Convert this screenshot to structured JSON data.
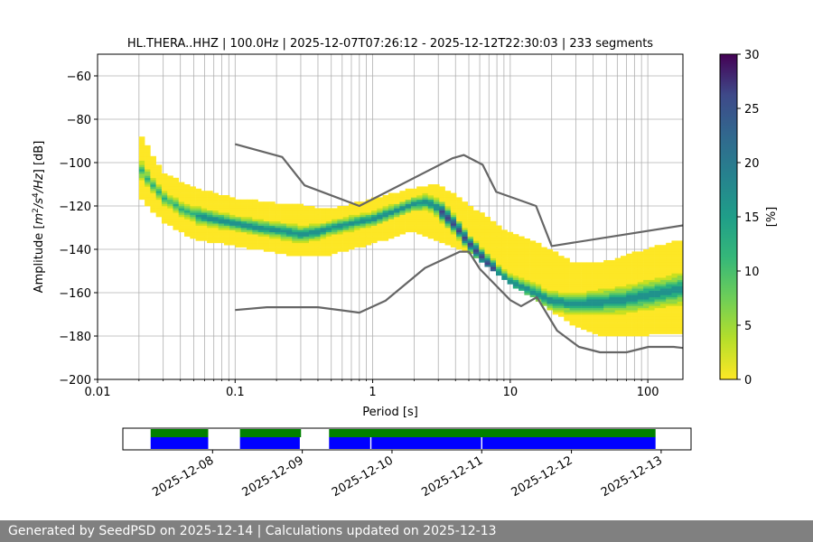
{
  "chart_data": [
    {
      "type": "heatmap",
      "title": "HL.THERA..HHZ | 100.0Hz | 2025-12-07T07:26:12 - 2025-12-12T22:30:03 | 233 segments",
      "xlabel": "Period [s]",
      "ylabel": "Amplitude [$m^2/s^4/Hz$] [dB]",
      "xlabel_parts": {
        "x_tick_labels": [
          "0.01",
          "0.1",
          "1",
          "10",
          "100"
        ]
      },
      "ylabel_parts": {
        "prefix": "Amplitude [",
        "m": "m",
        "two": "2",
        "s": "/s",
        "four": "4",
        "hz": "/Hz",
        "suffix": "] [dB]"
      },
      "x_scale": "log",
      "xlim": [
        0.01,
        180
      ],
      "ylim": [
        -200,
        -50
      ],
      "y_ticks": [
        -60,
        -80,
        -100,
        -120,
        -140,
        -160,
        -180,
        -200
      ],
      "y_tick_labels": [
        "−60",
        "−80",
        "−100",
        "−120",
        "−140",
        "−160",
        "−180",
        "−200"
      ],
      "grid": true,
      "colorbar": {
        "label": "[%]",
        "range": [
          0,
          30
        ],
        "ticks": [
          0,
          5,
          10,
          15,
          20,
          25,
          30
        ],
        "tick_labels": [
          "0",
          "5",
          "10",
          "15",
          "20",
          "25",
          "30"
        ],
        "colormap": "viridis"
      },
      "mode_curve": {
        "period": [
          0.02,
          0.025,
          0.03,
          0.04,
          0.05,
          0.07,
          0.1,
          0.15,
          0.2,
          0.3,
          0.4,
          0.5,
          0.7,
          1.0,
          1.5,
          2.0,
          2.5,
          3.0,
          4.0,
          5.0,
          7.0,
          10,
          15,
          20,
          30,
          50,
          70,
          100,
          150,
          180
        ],
        "db": [
          -102,
          -110,
          -116,
          -121,
          -124,
          -126,
          -128,
          -130,
          -131,
          -133,
          -132,
          -130,
          -128,
          -126,
          -122,
          -119,
          -118,
          -121,
          -129,
          -137,
          -147,
          -155,
          -160,
          -164,
          -165,
          -164,
          -163,
          -161,
          -159,
          -158
        ]
      },
      "density_band": {
        "period": [
          0.02,
          0.03,
          0.05,
          0.1,
          0.2,
          0.3,
          0.5,
          1.0,
          2.0,
          3.0,
          5.0,
          7.0,
          10,
          15,
          20,
          30,
          50,
          100,
          180
        ],
        "low_db": [
          -115,
          -127,
          -135,
          -138,
          -141,
          -143,
          -142,
          -137,
          -131,
          -136,
          -141,
          -148,
          -156,
          -162,
          -168,
          -175,
          -180,
          -179,
          -178
        ],
        "high_db": [
          -86,
          -105,
          -112,
          -117,
          -119,
          -120,
          -122,
          -117,
          -112,
          -110,
          -120,
          -126,
          -133,
          -137,
          -141,
          -147,
          -146,
          -140,
          -136
        ]
      },
      "noise_model_high": {
        "period": [
          0.1,
          0.22,
          0.32,
          0.8,
          3.8,
          4.6,
          6.3,
          7.9,
          15.4,
          20,
          354.8
        ],
        "db": [
          -91.5,
          -97.4,
          -110.5,
          -120,
          -98,
          -96.5,
          -101,
          -113.5,
          -120,
          -138.5,
          -126
        ]
      },
      "noise_model_low": {
        "period": [
          0.1,
          0.17,
          0.4,
          0.8,
          1.24,
          2.4,
          4.3,
          5.0,
          6.0,
          10,
          12,
          15.6,
          21.9,
          31.6,
          45,
          70,
          101,
          154,
          180
        ],
        "db": [
          -168,
          -166.7,
          -166.7,
          -169.2,
          -163.7,
          -148.6,
          -141.1,
          -141.1,
          -149,
          -163.4,
          -166.2,
          -162.1,
          -177.5,
          -185,
          -187.5,
          -187.5,
          -185,
          -185,
          -185.5
        ]
      }
    },
    {
      "type": "timeline",
      "date_tick_labels": [
        "2025-12-08",
        "2025-12-09",
        "2025-12-10",
        "2025-12-11",
        "2025-12-12",
        "2025-12-13"
      ],
      "date_ticks": [
        "2025-12-08",
        "2025-12-09",
        "2025-12-10",
        "2025-12-11",
        "2025-12-12",
        "2025-12-13"
      ],
      "xlim": [
        "2025-12-07T00:00",
        "2025-12-13T08:00"
      ],
      "series": [
        {
          "color": "#008000",
          "segments": [
            [
              "2025-12-07T07:26",
              "2025-12-07T22:50"
            ],
            [
              "2025-12-08T07:20",
              "2025-12-08T23:40"
            ],
            [
              "2025-12-09T07:10",
              "2025-12-12T22:30"
            ]
          ]
        },
        {
          "color": "#0000ff",
          "segments": [
            [
              "2025-12-07T07:26",
              "2025-12-07T22:50"
            ],
            [
              "2025-12-08T07:20",
              "2025-12-08T23:20"
            ],
            [
              "2025-12-09T07:10",
              "2025-12-09T18:10"
            ],
            [
              "2025-12-09T18:30",
              "2025-12-10T23:50"
            ],
            [
              "2025-12-11T00:10",
              "2025-12-12T22:30"
            ]
          ]
        }
      ]
    }
  ],
  "colors": {
    "noise_model": "#666666",
    "grid": "#b0b0b0",
    "footer_bg": "#808080",
    "footer_text": "#ffffff"
  },
  "footer": {
    "text": "Generated by SeedPSD on 2025-12-14 | Calculations updated on 2025-12-13"
  }
}
